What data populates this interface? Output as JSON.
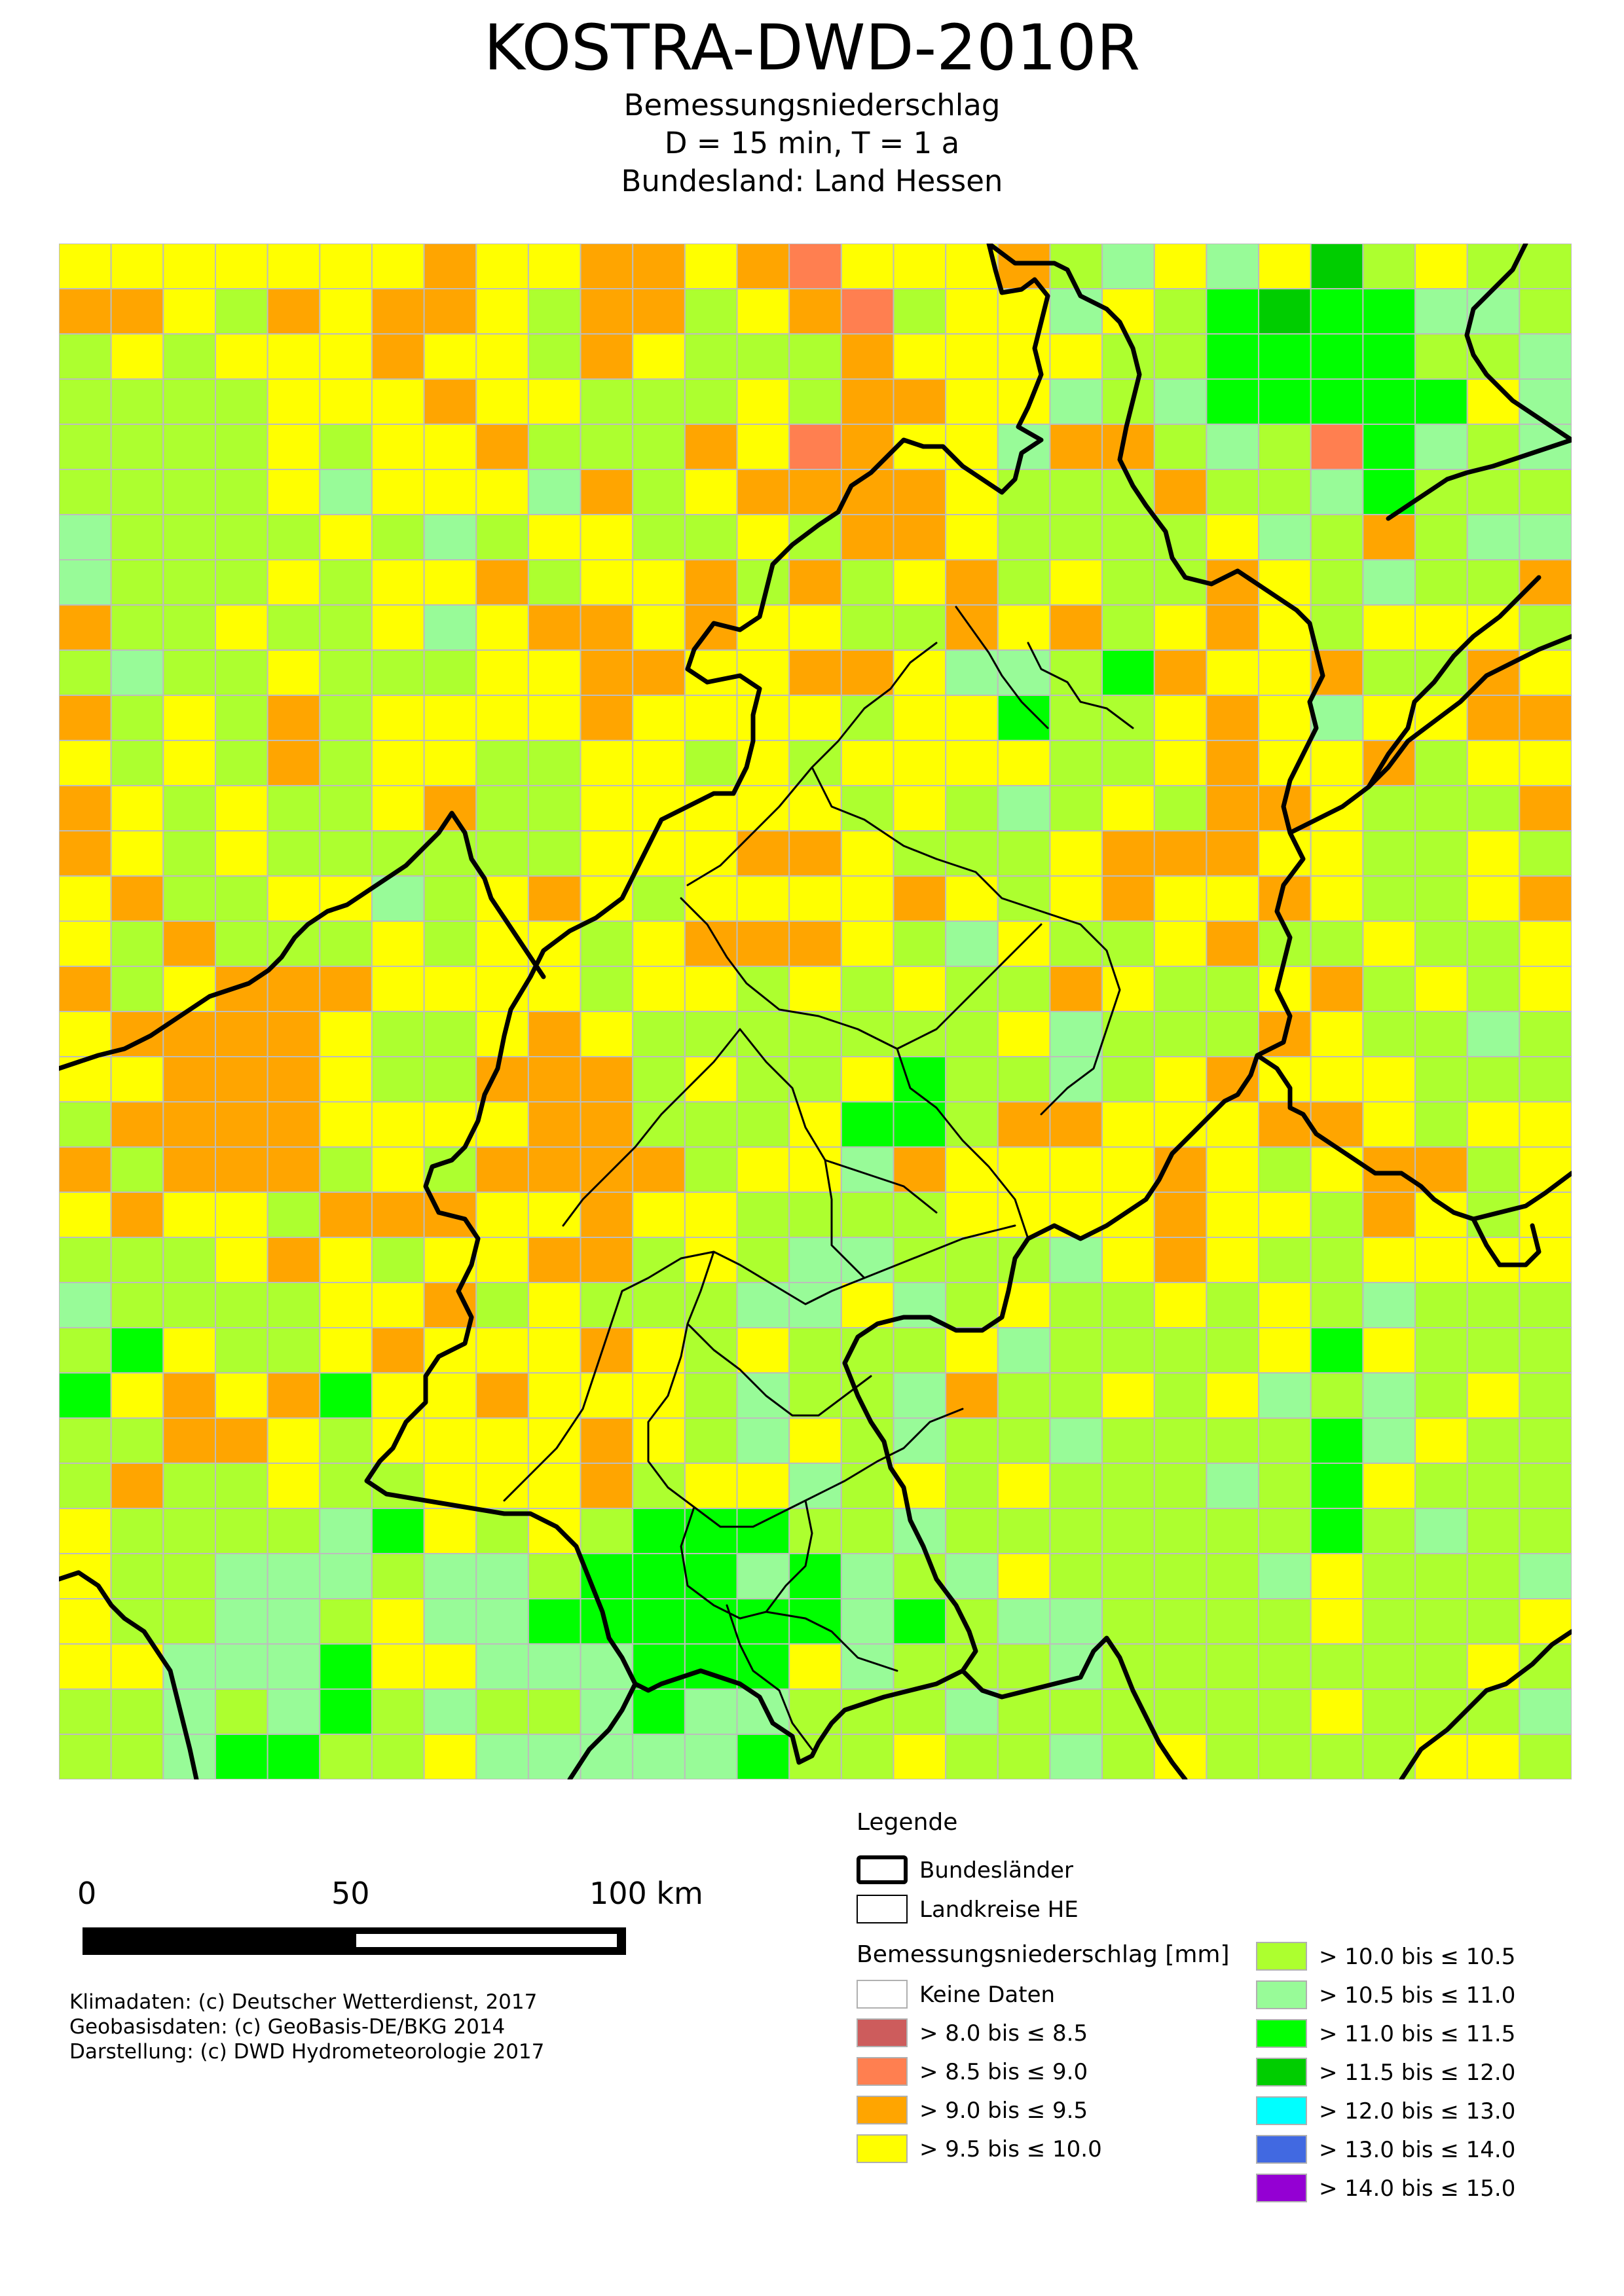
{
  "header": {
    "title": "KOSTRA-DWD-2010R",
    "subtitle_lines": [
      "Bemessungsniederschlag",
      "D = 15 min,  T = 1 a",
      "Bundesland: Land Hessen"
    ]
  },
  "scale_bar": {
    "labels": [
      "0",
      "50",
      "100 km"
    ]
  },
  "credits": [
    "Klimadaten: (c) Deutscher Wetterdienst, 2017",
    "Geobasisdaten: (c) GeoBasis-DE/BKG 2014",
    "Darstellung: (c) DWD Hydrometeorologie 2017"
  ],
  "legend": {
    "title": "Legende",
    "boundaries": [
      {
        "label": "Bundesländer"
      },
      {
        "label": "Landkreise HE"
      }
    ],
    "classes_title": "Bemessungsniederschlag [mm]",
    "classes": [
      {
        "label": "Keine Daten",
        "color": "#ffffff"
      },
      {
        "label": "> 8.0 bis ≤ 8.5",
        "color": "#cd5c5c"
      },
      {
        "label": "> 8.5 bis ≤ 9.0",
        "color": "#ff7f50"
      },
      {
        "label": "> 9.0 bis ≤ 9.5",
        "color": "#ffa500"
      },
      {
        "label": "> 9.5 bis ≤ 10.0",
        "color": "#ffff00"
      },
      {
        "label": "> 10.0 bis ≤ 10.5",
        "color": "#adff2f"
      },
      {
        "label": "> 10.5 bis ≤ 11.0",
        "color": "#98fb98"
      },
      {
        "label": "> 11.0 bis ≤ 11.5",
        "color": "#00ff00"
      },
      {
        "label": "> 11.5 bis ≤ 12.0",
        "color": "#00cd00"
      },
      {
        "label": "> 12.0 bis ≤ 13.0",
        "color": "#00ffff"
      },
      {
        "label": "> 13.0 bis ≤ 14.0",
        "color": "#4169e1"
      },
      {
        "label": "> 14.0 bis ≤ 15.0",
        "color": "#9400d3"
      }
    ]
  },
  "grid": {
    "legend": ". = keine Daten, 2 = 8.0-8.5, 3 = 8.5-9.0, 4 = 9.0-9.5, 5 = 9.5-10.0, 6 = 10.0-10.5, 7 = 10.5-11.0, 8 = 11.0-11.5, 9 = 11.5-12.0",
    "rows": [
      "55555554554454355546757596566",
      "44564544564465436557568988776",
      "65655545564566645555668888667",
      "66665554556665644557678888857",
      "66665655466645345574467638767",
      "66665755574654444566646678666",
      "76666567655665644566665764677",
      "76665655465546465465664567664",
      "46656657544545566454654565556",
      "67665666554455445776845546645",
      "46564655554555565586654575544",
      "56564655665565655556654554655",
      "45656654665555565676564456664",
      "45656666665554456665444556656",
      "54665576545655554565455456654",
      "56466656556544456756654665665",
      "46544455556556565664566546565",
      "54444566545666666657666456676",
      "55444566444656658667654555666",
      "64444555544666588644555445655",
      "46444656444465574555545654465",
      "54556444554556666555545564565",
      "66654565544656776667545665555",
      "76666554656667757656656567666",
      "68566545554565666576666585666",
      "85454855455567667466565767656",
      "66445655554567567667666687566",
      "64665665554655765656667685666",
      "56666785656888667666666686766",
      "56677767768887876756666756667",
      "56677657788888878677666656665",
      "55777855777888576667666666656",
      "66767867667877666766666656667",
      "66788665777778665667656666556"
    ]
  }
}
